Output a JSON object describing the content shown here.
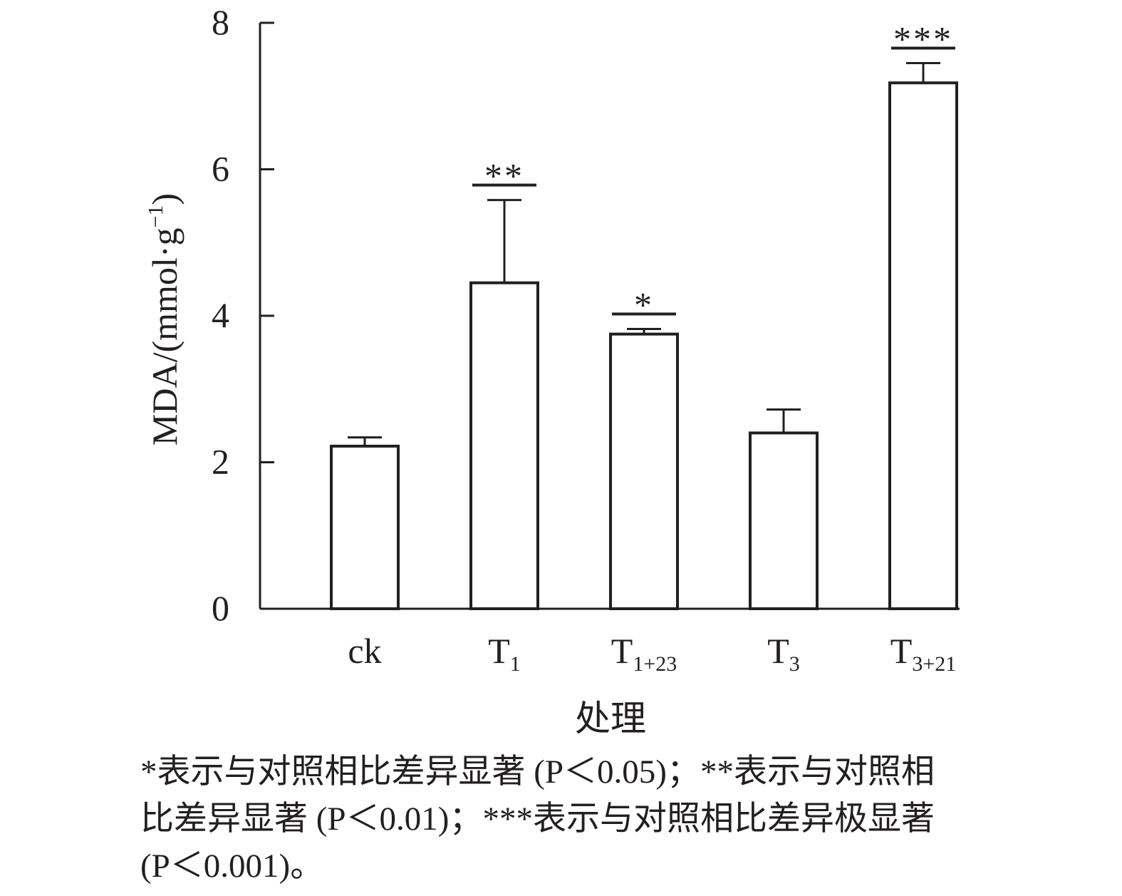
{
  "chart_data": {
    "type": "bar",
    "categories": [
      {
        "base": "T",
        "sub": "",
        "label": "ck"
      },
      {
        "base": "T",
        "sub": "1",
        "label": ""
      },
      {
        "base": "T",
        "sub": "1+23",
        "label": ""
      },
      {
        "base": "T",
        "sub": "3",
        "label": ""
      },
      {
        "base": "T",
        "sub": "3+21",
        "label": ""
      }
    ],
    "values": [
      2.22,
      4.45,
      3.75,
      2.4,
      7.18
    ],
    "error": [
      0.12,
      1.13,
      0.07,
      0.32,
      0.27
    ],
    "significance": [
      "",
      "**",
      "*",
      "",
      "***"
    ],
    "ylabel": "MDA/(mmol·g",
    "ylabel_sup": "−1",
    "ylabel_close": ")",
    "xlabel": "处理",
    "ylim": [
      0,
      8
    ],
    "yticks": [
      "0",
      "2",
      "4",
      "6",
      "8"
    ],
    "bar_fill": "#ffffff",
    "line_color": "#231f20"
  },
  "note": "*表示与对照相比差异显著 (P＜0.05)；**表示与对照相比差异显著 (P＜0.01)；***表示与对照相比差异极显著 (P＜0.001)。"
}
